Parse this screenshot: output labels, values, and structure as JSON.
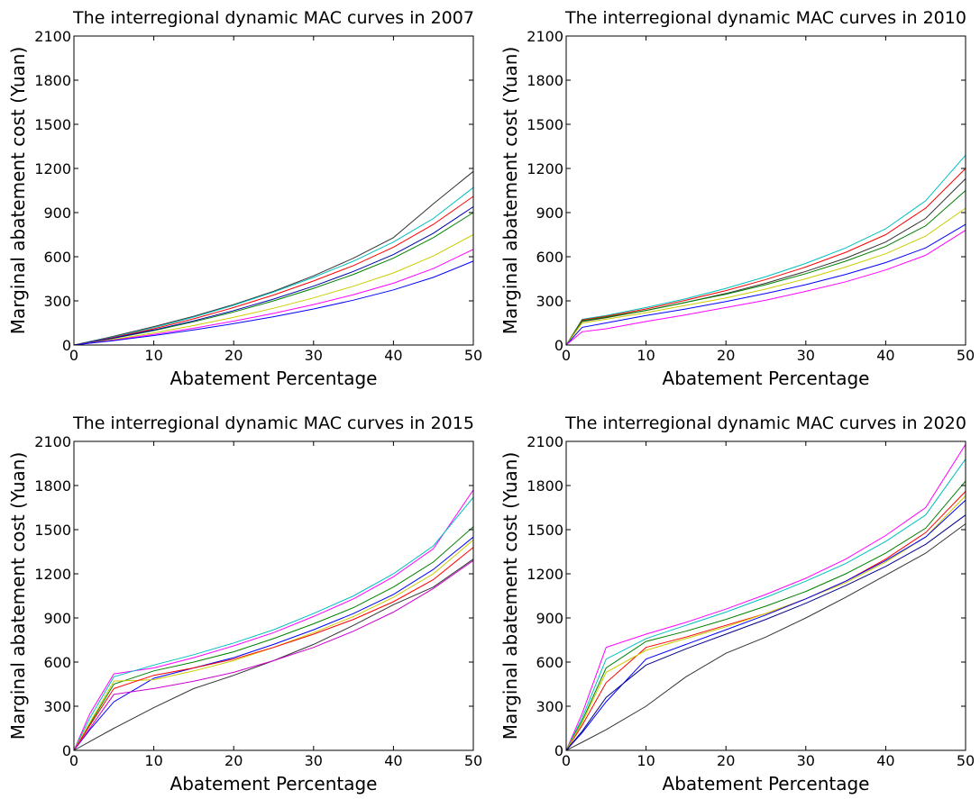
{
  "chart_data": [
    {
      "type": "line",
      "title": "The interregional dynamic MAC curves in 2007",
      "xlabel": "Abatement Percentage",
      "ylabel": "Marginal abatement cost (Yuan)",
      "xlim": [
        0,
        50
      ],
      "ylim": [
        0,
        2100
      ],
      "xticks": [
        0,
        10,
        20,
        30,
        40,
        50
      ],
      "yticks": [
        0,
        300,
        600,
        900,
        1200,
        1500,
        1800,
        2100
      ],
      "x": [
        0,
        2,
        5,
        10,
        15,
        20,
        25,
        30,
        35,
        40,
        45,
        50
      ],
      "series": [
        {
          "color": "#333333",
          "values": [
            0,
            24,
            60,
            125,
            195,
            275,
            365,
            470,
            590,
            730,
            960,
            1180
          ]
        },
        {
          "color": "#00bfbf",
          "values": [
            0,
            22,
            56,
            118,
            190,
            270,
            360,
            460,
            570,
            700,
            860,
            1070
          ]
        },
        {
          "color": "#ff0000",
          "values": [
            0,
            20,
            52,
            110,
            178,
            255,
            340,
            435,
            540,
            665,
            820,
            1010
          ]
        },
        {
          "color": "#008000",
          "values": [
            0,
            18,
            46,
            98,
            158,
            225,
            300,
            385,
            480,
            590,
            730,
            900
          ]
        },
        {
          "color": "#0000aa",
          "values": [
            0,
            19,
            48,
            102,
            164,
            234,
            312,
            400,
            500,
            615,
            760,
            940
          ]
        },
        {
          "color": "#cccc00",
          "values": [
            0,
            15,
            38,
            82,
            132,
            188,
            250,
            320,
            400,
            490,
            605,
            750
          ]
        },
        {
          "color": "#ff00ff",
          "values": [
            0,
            13,
            33,
            72,
            114,
            162,
            215,
            275,
            342,
            420,
            520,
            650
          ]
        },
        {
          "color": "#0000ff",
          "values": [
            0,
            12,
            30,
            64,
            102,
            145,
            192,
            245,
            305,
            375,
            460,
            570
          ]
        }
      ]
    },
    {
      "type": "line",
      "title": "The interregional dynamic MAC curves in 2010",
      "xlabel": "Abatement Percentage",
      "ylabel": "Marginal abatement cost (Yuan)",
      "xlim": [
        0,
        50
      ],
      "ylim": [
        0,
        2100
      ],
      "xticks": [
        0,
        10,
        20,
        30,
        40,
        50
      ],
      "yticks": [
        0,
        300,
        600,
        900,
        1200,
        1500,
        1800,
        2100
      ],
      "x": [
        0,
        2,
        5,
        10,
        15,
        20,
        25,
        30,
        35,
        40,
        45,
        50
      ],
      "series": [
        {
          "color": "#333333",
          "values": [
            0,
            160,
            185,
            235,
            290,
            350,
            420,
            500,
            590,
            700,
            860,
            1130
          ]
        },
        {
          "color": "#00bfbf",
          "values": [
            0,
            175,
            200,
            255,
            315,
            385,
            465,
            555,
            660,
            790,
            980,
            1290
          ]
        },
        {
          "color": "#ff0000",
          "values": [
            0,
            170,
            195,
            245,
            305,
            370,
            445,
            530,
            630,
            750,
            930,
            1200
          ]
        },
        {
          "color": "#008000",
          "values": [
            0,
            165,
            190,
            235,
            290,
            345,
            410,
            485,
            570,
            670,
            810,
            1050
          ]
        },
        {
          "color": "#cccc00",
          "values": [
            0,
            150,
            175,
            220,
            270,
            320,
            380,
            450,
            530,
            620,
            740,
            930
          ]
        },
        {
          "color": "#0000ff",
          "values": [
            0,
            120,
            150,
            200,
            245,
            295,
            350,
            410,
            480,
            560,
            660,
            820
          ]
        },
        {
          "color": "#ff00ff",
          "values": [
            0,
            90,
            110,
            160,
            205,
            255,
            305,
            365,
            430,
            510,
            610,
            780
          ]
        }
      ]
    },
    {
      "type": "line",
      "title": "The interregional dynamic MAC curves in 2015",
      "xlabel": "Abatement Percentage",
      "ylabel": "Marginal abatement cost (Yuan)",
      "xlim": [
        0,
        50
      ],
      "ylim": [
        0,
        2100
      ],
      "xticks": [
        0,
        10,
        20,
        30,
        40,
        50
      ],
      "yticks": [
        0,
        300,
        600,
        900,
        1200,
        1500,
        1800,
        2100
      ],
      "x": [
        0,
        2,
        5,
        10,
        15,
        20,
        25,
        30,
        35,
        40,
        45,
        50
      ],
      "series": [
        {
          "color": "#333333",
          "values": [
            0,
            60,
            150,
            290,
            420,
            510,
            610,
            720,
            850,
            990,
            1110,
            1300
          ]
        },
        {
          "color": "#ff00ff",
          "values": [
            0,
            250,
            520,
            560,
            630,
            710,
            800,
            910,
            1030,
            1180,
            1370,
            1770
          ]
        },
        {
          "color": "#00bfbf",
          "values": [
            0,
            220,
            500,
            580,
            650,
            730,
            820,
            930,
            1050,
            1200,
            1390,
            1720
          ]
        },
        {
          "color": "#008000",
          "values": [
            0,
            180,
            450,
            540,
            600,
            670,
            760,
            860,
            970,
            1110,
            1280,
            1520
          ]
        },
        {
          "color": "#0000ff",
          "values": [
            0,
            140,
            330,
            490,
            560,
            630,
            720,
            820,
            930,
            1060,
            1230,
            1450
          ]
        },
        {
          "color": "#cccc00",
          "values": [
            0,
            190,
            470,
            480,
            540,
            610,
            700,
            800,
            910,
            1040,
            1200,
            1430
          ]
        },
        {
          "color": "#ff0000",
          "values": [
            0,
            170,
            420,
            510,
            560,
            620,
            700,
            790,
            890,
            1010,
            1160,
            1380
          ]
        },
        {
          "color": "#cc00cc",
          "values": [
            0,
            150,
            380,
            420,
            470,
            530,
            610,
            700,
            810,
            940,
            1100,
            1290
          ]
        }
      ]
    },
    {
      "type": "line",
      "title": "The interregional dynamic MAC curves in 2020",
      "xlabel": "Abatement Percentage",
      "ylabel": "Marginal abatement cost (Yuan)",
      "xlim": [
        0,
        50
      ],
      "ylim": [
        0,
        2100
      ],
      "xticks": [
        0,
        10,
        20,
        30,
        40,
        50
      ],
      "yticks": [
        0,
        300,
        600,
        900,
        1200,
        1500,
        1800,
        2100
      ],
      "x": [
        0,
        2,
        5,
        10,
        15,
        20,
        25,
        30,
        35,
        40,
        45,
        50
      ],
      "series": [
        {
          "color": "#333333",
          "values": [
            0,
            55,
            140,
            300,
            500,
            660,
            770,
            900,
            1040,
            1190,
            1340,
            1540
          ]
        },
        {
          "color": "#ff00ff",
          "values": [
            0,
            250,
            700,
            790,
            870,
            960,
            1060,
            1170,
            1300,
            1460,
            1650,
            2080
          ]
        },
        {
          "color": "#00bfbf",
          "values": [
            0,
            220,
            620,
            760,
            850,
            940,
            1040,
            1150,
            1270,
            1420,
            1600,
            1980
          ]
        },
        {
          "color": "#008000",
          "values": [
            0,
            200,
            560,
            740,
            810,
            890,
            980,
            1080,
            1200,
            1340,
            1510,
            1830
          ]
        },
        {
          "color": "#ff0000",
          "values": [
            0,
            170,
            460,
            700,
            770,
            850,
            930,
            1030,
            1150,
            1300,
            1480,
            1760
          ]
        },
        {
          "color": "#cccc00",
          "values": [
            0,
            190,
            530,
            680,
            760,
            840,
            930,
            1030,
            1140,
            1280,
            1450,
            1730
          ]
        },
        {
          "color": "#0000ff",
          "values": [
            0,
            120,
            330,
            620,
            720,
            820,
            920,
            1030,
            1150,
            1290,
            1450,
            1700
          ]
        },
        {
          "color": "#000088",
          "values": [
            0,
            130,
            360,
            580,
            690,
            790,
            890,
            1000,
            1120,
            1250,
            1400,
            1600
          ]
        }
      ]
    }
  ]
}
